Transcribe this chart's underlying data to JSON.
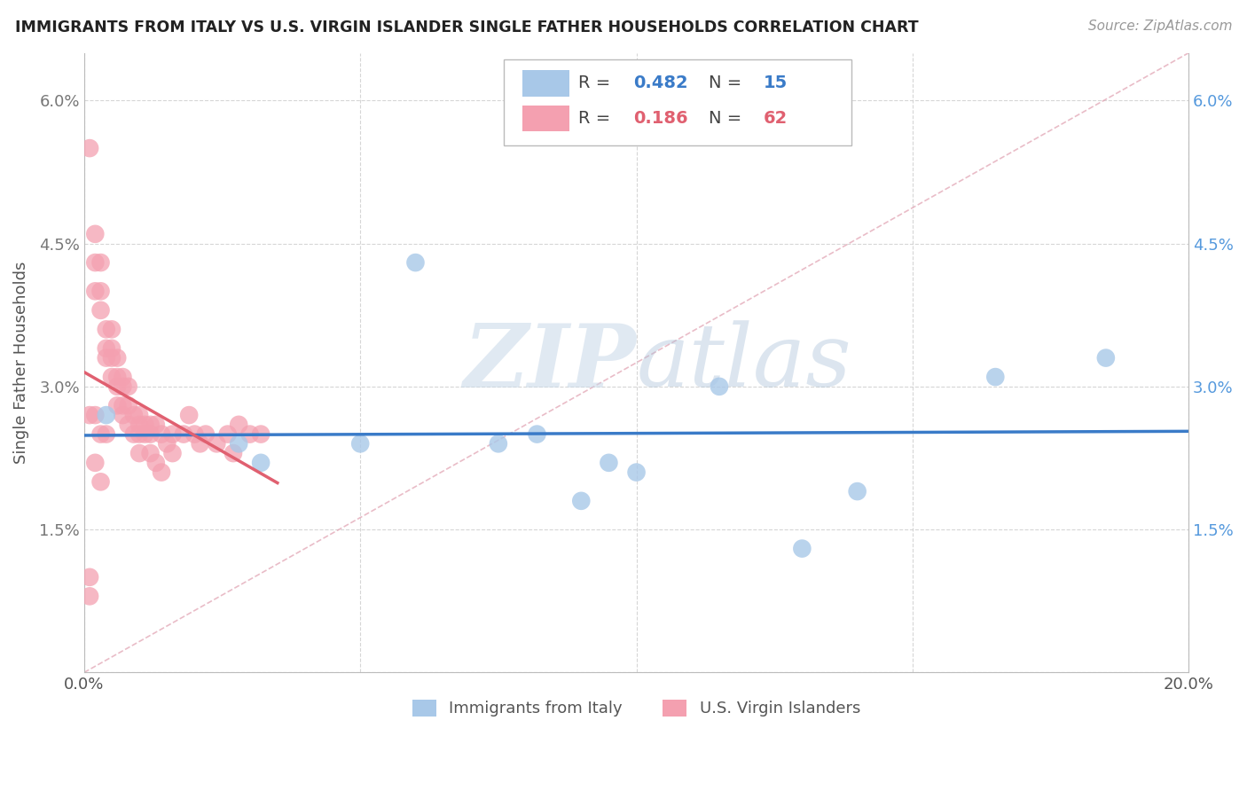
{
  "title": "IMMIGRANTS FROM ITALY VS U.S. VIRGIN ISLANDER SINGLE FATHER HOUSEHOLDS CORRELATION CHART",
  "source": "Source: ZipAtlas.com",
  "ylabel": "Single Father Households",
  "xlim": [
    0.0,
    0.2
  ],
  "ylim": [
    0.0,
    0.065
  ],
  "xticks": [
    0.0,
    0.05,
    0.1,
    0.15,
    0.2
  ],
  "yticks": [
    0.0,
    0.015,
    0.03,
    0.045,
    0.06
  ],
  "xticklabels": [
    "0.0%",
    "",
    "",
    "",
    "20.0%"
  ],
  "yticklabels_left": [
    "",
    "1.5%",
    "3.0%",
    "4.5%",
    "6.0%"
  ],
  "yticklabels_right": [
    "",
    "1.5%",
    "3.0%",
    "4.5%",
    "6.0%"
  ],
  "blue_R": "0.482",
  "blue_N": "15",
  "pink_R": "0.186",
  "pink_N": "62",
  "blue_color": "#a8c8e8",
  "pink_color": "#f4a0b0",
  "blue_line_color": "#3a7bc8",
  "pink_line_color": "#e06070",
  "watermark_zip": "ZIP",
  "watermark_atlas": "atlas",
  "blue_scatter_x": [
    0.004,
    0.028,
    0.032,
    0.05,
    0.06,
    0.075,
    0.082,
    0.09,
    0.095,
    0.1,
    0.115,
    0.13,
    0.14,
    0.165,
    0.185
  ],
  "blue_scatter_y": [
    0.027,
    0.024,
    0.022,
    0.024,
    0.043,
    0.024,
    0.025,
    0.018,
    0.022,
    0.021,
    0.03,
    0.013,
    0.019,
    0.031,
    0.033
  ],
  "pink_scatter_x": [
    0.001,
    0.001,
    0.002,
    0.002,
    0.002,
    0.003,
    0.003,
    0.003,
    0.004,
    0.004,
    0.004,
    0.005,
    0.005,
    0.005,
    0.005,
    0.006,
    0.006,
    0.006,
    0.006,
    0.007,
    0.007,
    0.007,
    0.007,
    0.008,
    0.008,
    0.008,
    0.009,
    0.009,
    0.01,
    0.01,
    0.01,
    0.011,
    0.011,
    0.012,
    0.012,
    0.012,
    0.013,
    0.014,
    0.015,
    0.016,
    0.016,
    0.018,
    0.019,
    0.02,
    0.021,
    0.022,
    0.024,
    0.026,
    0.027,
    0.028,
    0.03,
    0.032,
    0.001,
    0.002,
    0.003,
    0.01,
    0.013,
    0.014,
    0.001,
    0.002,
    0.003,
    0.004
  ],
  "pink_scatter_y": [
    0.055,
    0.01,
    0.046,
    0.043,
    0.04,
    0.043,
    0.04,
    0.038,
    0.036,
    0.034,
    0.033,
    0.036,
    0.034,
    0.033,
    0.031,
    0.033,
    0.031,
    0.03,
    0.028,
    0.031,
    0.03,
    0.028,
    0.027,
    0.03,
    0.028,
    0.026,
    0.027,
    0.025,
    0.027,
    0.026,
    0.025,
    0.026,
    0.025,
    0.026,
    0.025,
    0.023,
    0.026,
    0.025,
    0.024,
    0.025,
    0.023,
    0.025,
    0.027,
    0.025,
    0.024,
    0.025,
    0.024,
    0.025,
    0.023,
    0.026,
    0.025,
    0.025,
    0.008,
    0.022,
    0.02,
    0.023,
    0.022,
    0.021,
    0.027,
    0.027,
    0.025,
    0.025
  ]
}
